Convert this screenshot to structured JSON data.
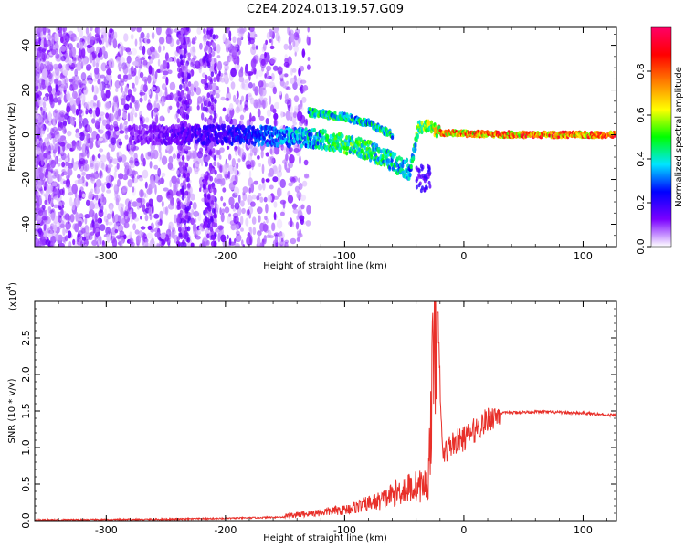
{
  "title": "C2E4.2024.013.19.57.G09",
  "chart_data": [
    {
      "type": "heatmap",
      "name": "spectrogram",
      "title": "C2E4.2024.013.19.57.G09",
      "xlabel": "Height of straight line (km)",
      "ylabel": "Frequency (Hz)",
      "xlim": [
        -360,
        128
      ],
      "ylim": [
        -50,
        48
      ],
      "xticks": [
        -300,
        -200,
        -100,
        0,
        100
      ],
      "yticks": [
        -40,
        -20,
        0,
        20,
        40
      ],
      "colorbar": {
        "label": "Normalized spectral amplitude",
        "range": [
          0.0,
          1.0
        ],
        "ticks": [
          "0.0",
          "0.2",
          "0.4",
          "0.6",
          "0.8"
        ],
        "colormap": [
          "#ffffff",
          "#7a00ff",
          "#0000ff",
          "#00e5ff",
          "#00ff00",
          "#ffff00",
          "#ff8000",
          "#ff0000",
          "#ff0066"
        ]
      },
      "signal_trace": [
        {
          "x": -270,
          "f": 0,
          "a": 0.12
        },
        {
          "x": -190,
          "f": 0,
          "a": 0.25
        },
        {
          "x": -150,
          "f": -1,
          "a": 0.35
        },
        {
          "x": -120,
          "f": -2,
          "a": 0.45
        },
        {
          "x": -100,
          "f": -4,
          "a": 0.5
        },
        {
          "x": -80,
          "f": -7,
          "a": 0.5
        },
        {
          "x": -60,
          "f": -12,
          "a": 0.45
        },
        {
          "x": -45,
          "f": -16,
          "a": 0.4
        },
        {
          "x": -38,
          "f": 3,
          "a": 0.55
        },
        {
          "x": -30,
          "f": 4,
          "a": 0.6
        },
        {
          "x": -20,
          "f": 1,
          "a": 0.75
        },
        {
          "x": 0,
          "f": 0.5,
          "a": 0.8
        },
        {
          "x": 50,
          "f": 0,
          "a": 0.85
        },
        {
          "x": 128,
          "f": 0,
          "a": 0.85
        }
      ],
      "upper_branch": [
        {
          "x": -130,
          "f": 10
        },
        {
          "x": -100,
          "f": 8
        },
        {
          "x": -80,
          "f": 5
        },
        {
          "x": -60,
          "f": 0
        }
      ]
    },
    {
      "type": "line",
      "name": "snr",
      "xlabel": "Height of straight line (km)",
      "ylabel": "SNR (10 * v/v)",
      "yscale_label": "(x10",
      "yscale_exp": "4",
      "xlim": [
        -360,
        128
      ],
      "ylim": [
        0,
        3.0
      ],
      "xticks": [
        -300,
        -200,
        -100,
        0,
        100
      ],
      "yticks": [
        "0.0",
        "0.5",
        "1.0",
        "1.5",
        "2.0",
        "2.5"
      ],
      "series": [
        {
          "name": "SNR",
          "color": "#e8302a",
          "envelope": [
            {
              "x": -360,
              "y": 0.01
            },
            {
              "x": -250,
              "y": 0.02
            },
            {
              "x": -200,
              "y": 0.03
            },
            {
              "x": -150,
              "y": 0.05
            },
            {
              "x": -100,
              "y": 0.12
            },
            {
              "x": -70,
              "y": 0.22
            },
            {
              "x": -50,
              "y": 0.35
            },
            {
              "x": -30,
              "y": 0.4
            },
            {
              "x": -22,
              "y": 2.85
            },
            {
              "x": -18,
              "y": 0.9
            },
            {
              "x": -10,
              "y": 1.05
            },
            {
              "x": 0,
              "y": 1.12
            },
            {
              "x": 10,
              "y": 1.25
            },
            {
              "x": 20,
              "y": 1.38
            },
            {
              "x": 30,
              "y": 1.47
            },
            {
              "x": 60,
              "y": 1.49
            },
            {
              "x": 100,
              "y": 1.47
            },
            {
              "x": 128,
              "y": 1.44
            }
          ]
        }
      ]
    }
  ]
}
